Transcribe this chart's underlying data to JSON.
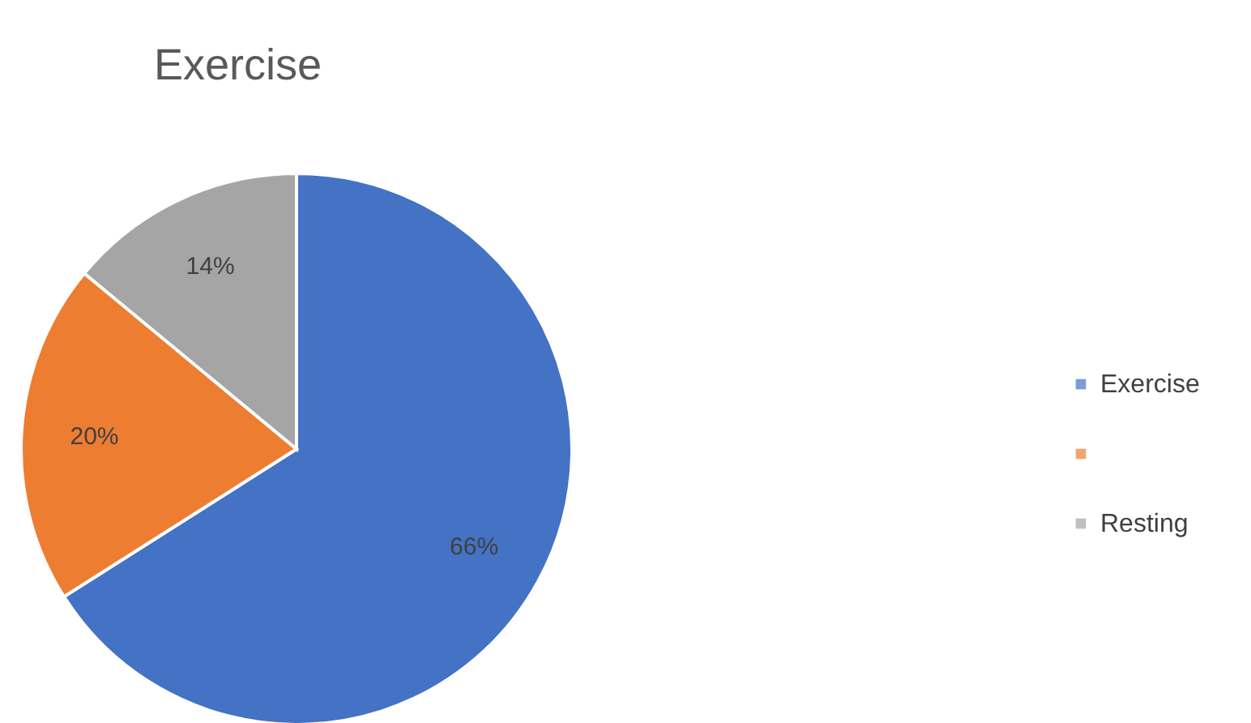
{
  "chart_data": {
    "type": "pie",
    "title": "Exercise",
    "categories": [
      "Exercise",
      null,
      "Resting"
    ],
    "values": [
      66,
      20,
      14
    ],
    "colors": [
      "#4472c4",
      "#ed7d31",
      "#a5a5a5"
    ],
    "value_labels": [
      "66%",
      "20%",
      "14%"
    ],
    "legend": "right"
  }
}
